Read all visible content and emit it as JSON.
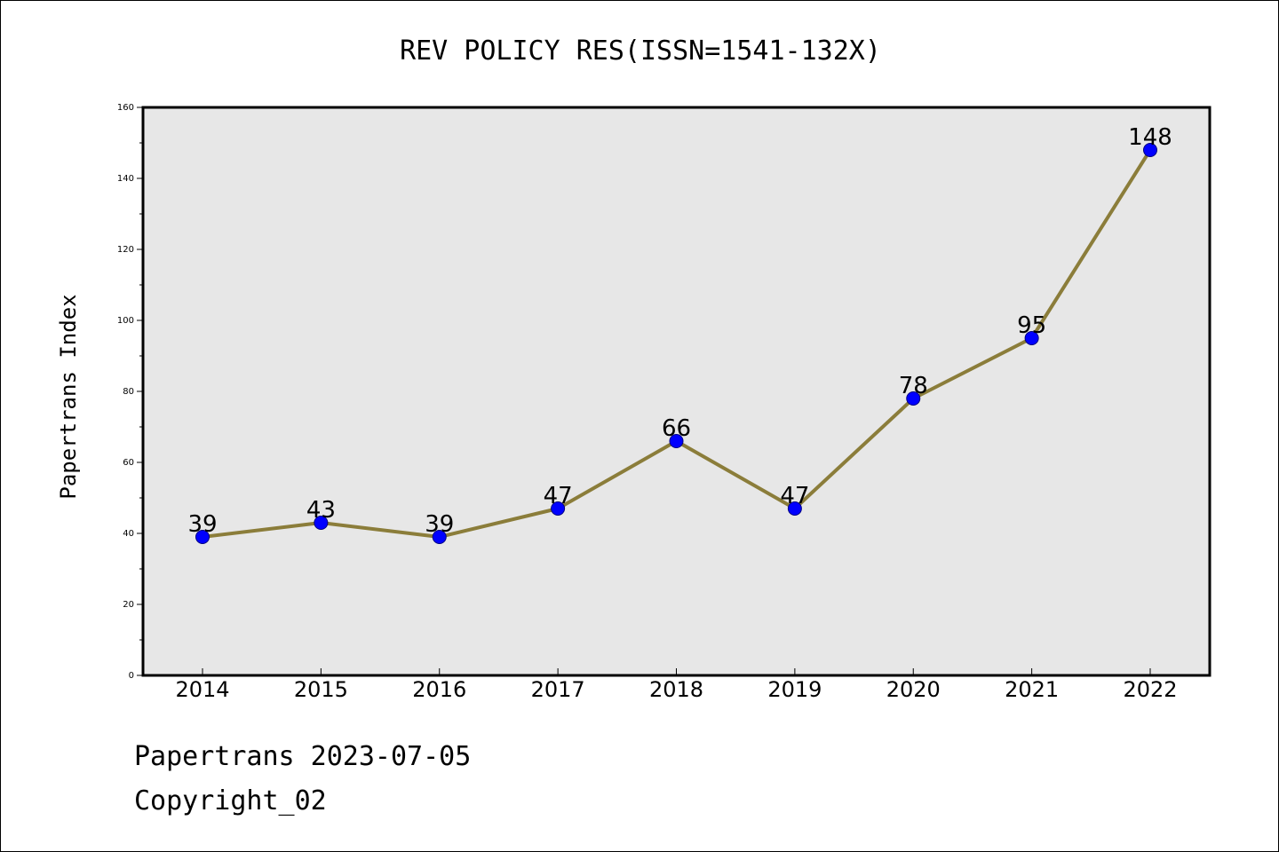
{
  "chart_data": {
    "type": "line",
    "title": "REV POLICY RES(ISSN=1541-132X)",
    "xlabel": "",
    "ylabel": "Papertrans Index",
    "categories": [
      "2014",
      "2015",
      "2016",
      "2017",
      "2018",
      "2019",
      "2020",
      "2021",
      "2022"
    ],
    "series": [
      {
        "values": [
          39,
          43,
          39,
          47,
          66,
          47,
          78,
          95,
          148
        ]
      }
    ],
    "data_labels": [
      "39",
      "43",
      "39",
      "47",
      "66",
      "47",
      "78",
      "95",
      "148"
    ],
    "ylim": [
      0,
      160
    ],
    "y_ticks": [
      "0",
      "20",
      "40",
      "60",
      "80",
      "100",
      "120",
      "140",
      "160"
    ],
    "grid": false,
    "legend": "none",
    "colors": {
      "plot_background": "#e7e7e7",
      "line": "#8b7d3a",
      "marker": "#0000ff",
      "marker_edge": "#000080"
    }
  },
  "footer": {
    "line1": "Papertrans 2023-07-05",
    "line2": "Copyright_02"
  }
}
